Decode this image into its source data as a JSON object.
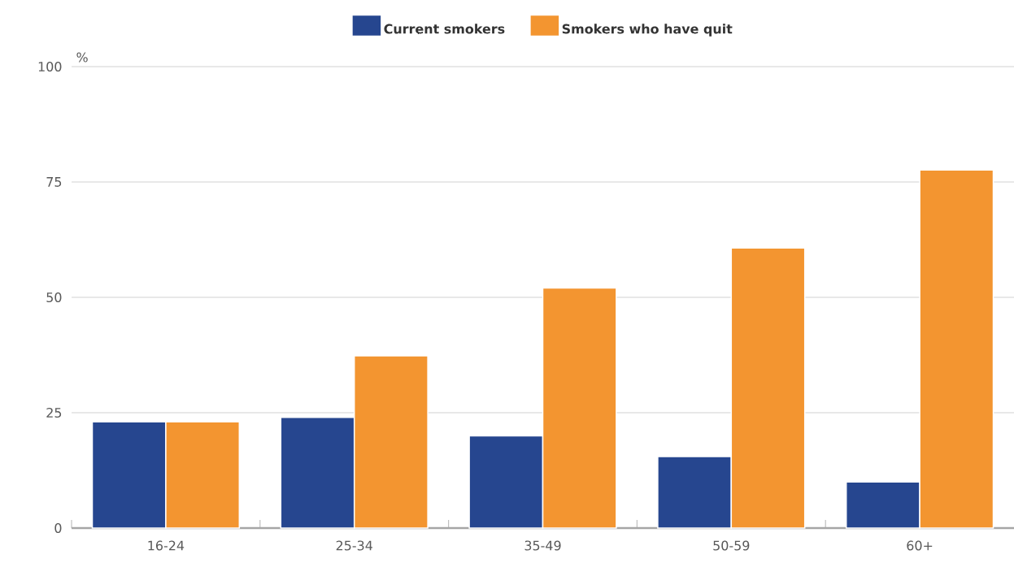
{
  "chart_data": {
    "type": "bar",
    "ylabel": "%",
    "categories": [
      "16-24",
      "25-34",
      "35-49",
      "50-59",
      "60+"
    ],
    "series": [
      {
        "name": "Current smokers",
        "color": "#26468f",
        "values": [
          23,
          24,
          20,
          15.5,
          10
        ]
      },
      {
        "name": "Smokers who have quit",
        "color": "#f39530",
        "values": [
          23,
          37.3,
          52,
          60.7,
          77.6
        ]
      }
    ],
    "ylim": [
      0,
      100
    ],
    "yticks": [
      0,
      25,
      50,
      75,
      100
    ],
    "grid": "y",
    "legend": "top"
  }
}
